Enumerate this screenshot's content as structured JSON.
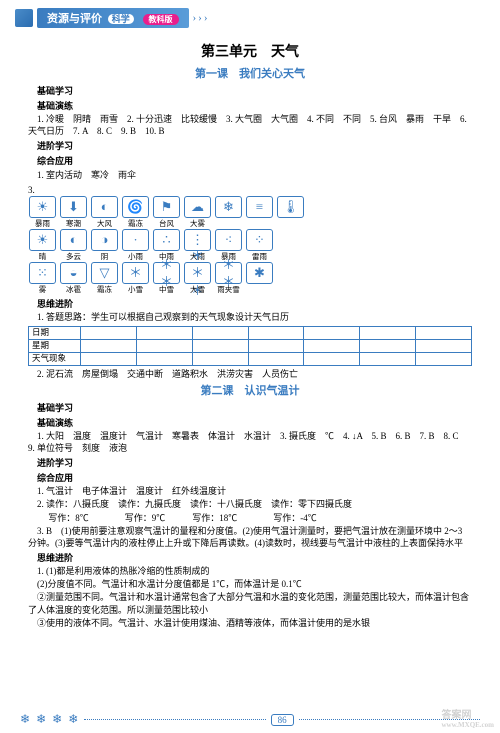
{
  "header": {
    "main": "资源与评价",
    "sub": "科学",
    "pill": "教科版"
  },
  "unit": "第三单元　天气",
  "lessons": [
    {
      "title": "第一课　我们关心天气",
      "basic_h": "基础学习",
      "practice_h": "基础演练",
      "basic_lines": [
        "1. 冷暖　阴晴　雨雪　2. 十分迅速　比较缓慢　3. 大气圈　大气圈　4. 不同　不同　5. 台风　暴雨　干旱　6. 天气日历　7. A　8. C　9. B　10. B",
        ""
      ],
      "adv_h": "进阶学习",
      "comp_h": "综合应用",
      "adv_line": "1. 室内活动　寒冷　雨伞",
      "weather_intro": "3.",
      "weather": {
        "rows": [
          {
            "icons": [
              "☀",
              "⬇",
              "◐",
              "🌀",
              "⚑",
              "☁",
              "❄",
              "≡",
              "🌡"
            ],
            "labels": [
              "暴雨",
              "寒潮",
              "大风",
              "霜冻",
              "台风",
              "大雾",
              "",
              "",
              ""
            ]
          },
          {
            "icons": [
              "☀",
              "◐",
              "◑",
              "·",
              "∴",
              "⋮",
              "⁖",
              "⁘"
            ],
            "labels": [
              "晴",
              "多云",
              "阴",
              "小雨",
              "中雨",
              "大雨",
              "暴雨",
              "雷雨"
            ]
          },
          {
            "icons": [
              "⁙",
              "◒",
              "▽",
              "＊",
              "＊＊",
              "＊＊＊",
              "＊＊",
              "✱"
            ],
            "labels": [
              "雾",
              "冰雹",
              "霜冻",
              "小雪",
              "中雪",
              "大雪",
              "雨夹雪",
              ""
            ]
          }
        ]
      },
      "think_h": "思维进阶",
      "think_line1": "1. 答题思路：学生可以根据自己观察到的天气现象设计天气日历",
      "table_rows": [
        "日期",
        "星期",
        "天气现象"
      ],
      "think_line2": "2. 泥石流　房屋倒塌　交通中断　道路积水　洪涝灾害　人员伤亡"
    },
    {
      "title": "第二课　认识气温计",
      "basic_h": "基础学习",
      "practice_h": "基础演练",
      "basic_lines": [
        "1. 大阳　温度　温度计　气温计　寒暑表　体温计　水温计　3. 摄氏度　℃　4. ↓A　5. B　6. B　7. B　8. C　9. 单位符号　刻度　液泡"
      ],
      "adv_h": "进阶学习",
      "comp_h": "综合应用",
      "adv_lines": [
        "1. 气温计　电子体温计　温度计　红外线温度计",
        "2. 读作：八摄氏度　读作：九摄氏度　读作：十八摄氏度　读作：零下四摄氏度",
        "　 写作：8℃　　　　写作：9℃　　　写作：18℃　　　　写作：-4℃",
        "3. B　(1)使用前要注意观察气温计的量程和分度值。(2)使用气温计测量时，要把气温计放在测量环境中 2～3 分钟。(3)要等气温计内的液柱停止上升或下降后再读数。(4)读数时，视线要与气温计中液柱的上表面保持水平"
      ],
      "think_h": "思维进阶",
      "think_lines": [
        "1. (1)都是利用液体的热胀冷缩的性质制成的",
        "(2)分度值不同。气温计和水温计分度值都是 1℃，而体温计是 0.1℃",
        "②测量范围不同。气温计和水温计通常包含了大部分气温和水温的变化范围，测量范围比较大，而体温计包含了人体温度的变化范围。所以测量范围比较小",
        "③使用的液体不同。气温计、水温计使用煤油、酒精等液体，而体温计使用的是水银"
      ]
    }
  ],
  "footer": {
    "page": "86"
  },
  "watermark": {
    "t1": "答案网",
    "t2": "www.MXQE.com"
  }
}
